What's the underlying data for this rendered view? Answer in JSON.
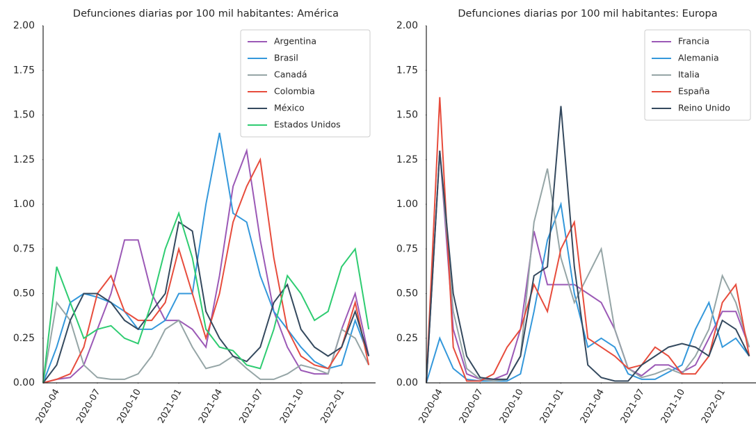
{
  "chart_data": [
    {
      "type": "line",
      "title": "Defunciones diarias por 100 mil habitantes: América",
      "x": [
        "2020-03",
        "2020-04",
        "2020-05",
        "2020-06",
        "2020-07",
        "2020-08",
        "2020-09",
        "2020-10",
        "2020-11",
        "2020-12",
        "2021-01",
        "2021-02",
        "2021-03",
        "2021-04",
        "2021-05",
        "2021-06",
        "2021-07",
        "2021-08",
        "2021-09",
        "2021-10",
        "2021-11",
        "2021-12",
        "2022-01",
        "2022-02",
        "2022-03"
      ],
      "xlim": [
        "2020-03",
        "2022-03"
      ],
      "xticks": [
        "2020-04",
        "2020-07",
        "2020-10",
        "2021-01",
        "2021-04",
        "2021-07",
        "2021-10",
        "2022-01"
      ],
      "ylim": [
        0,
        2
      ],
      "yticks": [
        {
          "value": 0,
          "label": "0.00"
        },
        {
          "value": 0.25,
          "label": "0.25"
        },
        {
          "value": 0.5,
          "label": "0.50"
        },
        {
          "value": 0.75,
          "label": "0.75"
        },
        {
          "value": 1,
          "label": "1.00"
        },
        {
          "value": 1.25,
          "label": "1.25"
        },
        {
          "value": 1.5,
          "label": "1.50"
        },
        {
          "value": 1.75,
          "label": "1.75"
        },
        {
          "value": 2,
          "label": "2.00"
        }
      ],
      "legend": "upper right",
      "series": [
        {
          "name": "Argentina",
          "color": "#9b59b6",
          "values": [
            0,
            0.02,
            0.03,
            0.1,
            0.3,
            0.5,
            0.8,
            0.8,
            0.5,
            0.35,
            0.35,
            0.3,
            0.2,
            0.6,
            1.1,
            1.3,
            0.8,
            0.4,
            0.2,
            0.07,
            0.05,
            0.05,
            0.3,
            0.5,
            0.15
          ]
        },
        {
          "name": "Brasil",
          "color": "#3498db",
          "values": [
            0,
            0.2,
            0.45,
            0.5,
            0.48,
            0.45,
            0.4,
            0.3,
            0.3,
            0.35,
            0.5,
            0.5,
            1.0,
            1.4,
            0.95,
            0.9,
            0.6,
            0.4,
            0.3,
            0.2,
            0.12,
            0.08,
            0.1,
            0.35,
            0.15
          ]
        },
        {
          "name": "Canadá",
          "color": "#95a5a6",
          "values": [
            0,
            0.45,
            0.35,
            0.1,
            0.03,
            0.02,
            0.02,
            0.05,
            0.15,
            0.3,
            0.35,
            0.2,
            0.08,
            0.1,
            0.15,
            0.08,
            0.02,
            0.02,
            0.05,
            0.1,
            0.08,
            0.05,
            0.3,
            0.25,
            0.1
          ]
        },
        {
          "name": "Colombia",
          "color": "#e74c3c",
          "values": [
            0,
            0.02,
            0.05,
            0.2,
            0.5,
            0.6,
            0.4,
            0.35,
            0.35,
            0.45,
            0.75,
            0.5,
            0.25,
            0.5,
            0.9,
            1.1,
            1.25,
            0.7,
            0.3,
            0.15,
            0.1,
            0.08,
            0.2,
            0.45,
            0.1
          ]
        },
        {
          "name": "México",
          "color": "#34495e",
          "values": [
            0,
            0.1,
            0.35,
            0.5,
            0.5,
            0.45,
            0.35,
            0.3,
            0.4,
            0.5,
            0.9,
            0.85,
            0.4,
            0.25,
            0.15,
            0.12,
            0.2,
            0.45,
            0.55,
            0.3,
            0.2,
            0.15,
            0.2,
            0.4,
            0.15
          ]
        },
        {
          "name": "Estados Unidos",
          "color": "#2ecc71",
          "values": [
            0,
            0.65,
            0.45,
            0.25,
            0.3,
            0.32,
            0.25,
            0.22,
            0.45,
            0.75,
            0.95,
            0.7,
            0.3,
            0.2,
            0.18,
            0.1,
            0.08,
            0.3,
            0.6,
            0.5,
            0.35,
            0.4,
            0.65,
            0.75,
            0.3
          ]
        }
      ]
    },
    {
      "type": "line",
      "title": "Defunciones diarias por 100 mil habitantes: Europa",
      "x": [
        "2020-03",
        "2020-04",
        "2020-05",
        "2020-06",
        "2020-07",
        "2020-08",
        "2020-09",
        "2020-10",
        "2020-11",
        "2020-12",
        "2021-01",
        "2021-02",
        "2021-03",
        "2021-04",
        "2021-05",
        "2021-06",
        "2021-07",
        "2021-08",
        "2021-09",
        "2021-10",
        "2021-11",
        "2021-12",
        "2022-01",
        "2022-02",
        "2022-03"
      ],
      "xlim": [
        "2020-03",
        "2022-03"
      ],
      "xticks": [
        "2020-04",
        "2020-07",
        "2020-10",
        "2021-01",
        "2021-04",
        "2021-07",
        "2021-10",
        "2022-01"
      ],
      "ylim": [
        0,
        2
      ],
      "yticks": [
        {
          "value": 0,
          "label": "0.00"
        },
        {
          "value": 0.25,
          "label": "0.25"
        },
        {
          "value": 0.5,
          "label": "0.50"
        },
        {
          "value": 0.75,
          "label": "0.75"
        },
        {
          "value": 1,
          "label": "1.00"
        },
        {
          "value": 1.25,
          "label": "1.25"
        },
        {
          "value": 1.5,
          "label": "1.50"
        },
        {
          "value": 1.75,
          "label": "1.75"
        },
        {
          "value": 2,
          "label": "2.00"
        }
      ],
      "legend": "upper right",
      "series": [
        {
          "name": "Francia",
          "color": "#9b59b6",
          "values": [
            0,
            1.3,
            0.3,
            0.05,
            0.02,
            0.02,
            0.05,
            0.3,
            0.85,
            0.55,
            0.55,
            0.55,
            0.5,
            0.45,
            0.3,
            0.08,
            0.04,
            0.1,
            0.1,
            0.06,
            0.1,
            0.25,
            0.4,
            0.4,
            0.2
          ]
        },
        {
          "name": "Alemania",
          "color": "#3498db",
          "values": [
            0,
            0.25,
            0.08,
            0.02,
            0.01,
            0.01,
            0.01,
            0.05,
            0.4,
            0.8,
            1.0,
            0.5,
            0.2,
            0.25,
            0.2,
            0.05,
            0.02,
            0.02,
            0.06,
            0.1,
            0.3,
            0.45,
            0.2,
            0.25,
            0.15
          ]
        },
        {
          "name": "Italia",
          "color": "#95a5a6",
          "values": [
            0,
            1.3,
            0.4,
            0.08,
            0.02,
            0.01,
            0.02,
            0.15,
            0.9,
            1.2,
            0.7,
            0.45,
            0.6,
            0.75,
            0.3,
            0.08,
            0.03,
            0.05,
            0.08,
            0.05,
            0.15,
            0.3,
            0.6,
            0.45,
            0.2
          ]
        },
        {
          "name": "España",
          "color": "#e74c3c",
          "values": [
            0,
            1.6,
            0.2,
            0.01,
            0.01,
            0.05,
            0.2,
            0.3,
            0.55,
            0.4,
            0.75,
            0.9,
            0.25,
            0.2,
            0.15,
            0.08,
            0.1,
            0.2,
            0.15,
            0.05,
            0.05,
            0.15,
            0.45,
            0.55,
            0.15
          ]
        },
        {
          "name": "Reino Unido",
          "color": "#34495e",
          "values": [
            0,
            1.3,
            0.5,
            0.15,
            0.03,
            0.02,
            0.02,
            0.15,
            0.6,
            0.65,
            1.55,
            0.65,
            0.1,
            0.03,
            0.01,
            0.01,
            0.1,
            0.15,
            0.2,
            0.22,
            0.2,
            0.15,
            0.35,
            0.3,
            0.15
          ]
        }
      ]
    }
  ]
}
